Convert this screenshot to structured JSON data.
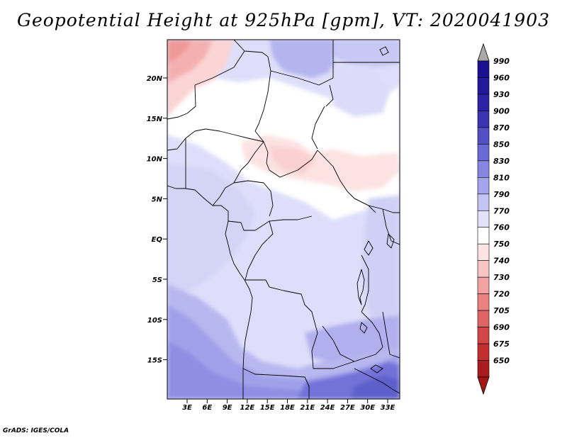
{
  "title": "Geopotential Height at 925hPa [gpm], VT: 2020041903",
  "credit": "GrADS: IGES/COLA",
  "map": {
    "lat_labels": [
      "20N",
      "15N",
      "10N",
      "5N",
      "EQ",
      "5S",
      "10S",
      "15S"
    ],
    "lon_labels": [
      "3E",
      "6E",
      "9E",
      "12E",
      "15E",
      "18E",
      "21E",
      "24E",
      "27E",
      "30E",
      "33E"
    ]
  },
  "colorbar": {
    "levels": [
      {
        "label": "990",
        "color": "#1a1094"
      },
      {
        "label": "960",
        "color": "#231a9c"
      },
      {
        "label": "930",
        "color": "#2c24a4"
      },
      {
        "label": "900",
        "color": "#3a34b0"
      },
      {
        "label": "870",
        "color": "#5250c4"
      },
      {
        "label": "850",
        "color": "#6a6ad4"
      },
      {
        "label": "830",
        "color": "#8686e0"
      },
      {
        "label": "810",
        "color": "#a4a4ec"
      },
      {
        "label": "790",
        "color": "#c4c4f4"
      },
      {
        "label": "770",
        "color": "#e2e2fa"
      },
      {
        "label": "760",
        "color": "#ffffff"
      },
      {
        "label": "750",
        "color": "#fde4e4"
      },
      {
        "label": "740",
        "color": "#f8c4c4"
      },
      {
        "label": "730",
        "color": "#f2a2a2"
      },
      {
        "label": "720",
        "color": "#ea8282"
      },
      {
        "label": "705",
        "color": "#e06464"
      },
      {
        "label": "690",
        "color": "#d44646"
      },
      {
        "label": "675",
        "color": "#c42e2e"
      },
      {
        "label": "650",
        "color": "#ac1c1c"
      }
    ],
    "top_arrow_color": "#a9a9a9",
    "bottom_arrow_color": "#a51616"
  }
}
